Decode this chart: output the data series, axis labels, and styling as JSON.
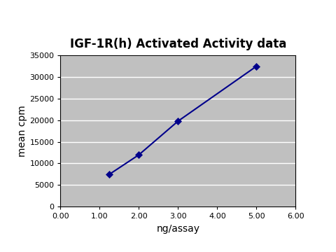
{
  "title": "IGF-1R(h) Activated Activity data",
  "xlabel": "ng/assay",
  "ylabel": "mean cpm",
  "x": [
    1.25,
    2.0,
    3.0,
    5.0
  ],
  "y": [
    7500,
    12000,
    19800,
    32500
  ],
  "xlim": [
    0.0,
    6.0
  ],
  "ylim": [
    0,
    35000
  ],
  "xticks": [
    0.0,
    1.0,
    2.0,
    3.0,
    4.0,
    5.0,
    6.0
  ],
  "xtick_labels": [
    "0.00",
    "1.00",
    "2.00",
    "3.00",
    "4.00",
    "5.00",
    "6.00"
  ],
  "yticks": [
    0,
    5000,
    10000,
    15000,
    20000,
    25000,
    30000,
    35000
  ],
  "ytick_labels": [
    "0",
    "5000",
    "10000",
    "15000",
    "20000",
    "25000",
    "30000",
    "35000"
  ],
  "line_color": "#00008B",
  "marker": "D",
  "marker_color": "#00008B",
  "marker_size": 5,
  "line_width": 1.5,
  "plot_bg_color": "#C0C0C0",
  "fig_bg_color": "#FFFFFF",
  "title_fontsize": 12,
  "label_fontsize": 10,
  "tick_fontsize": 8,
  "grid_color": "#A0A0A0",
  "border_color": "#000000"
}
